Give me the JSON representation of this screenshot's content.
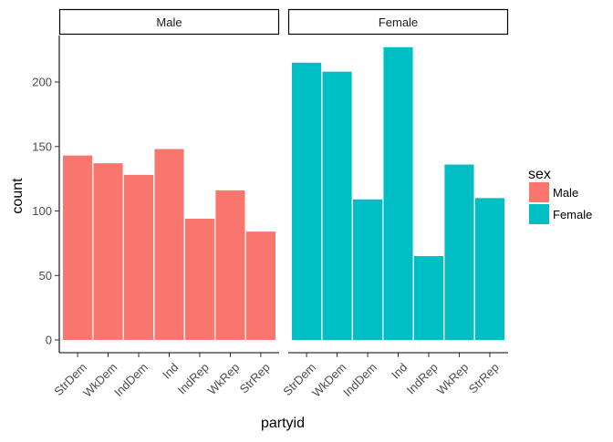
{
  "chart_data": {
    "type": "bar",
    "facet_variable": "sex",
    "xlabel": "partyid",
    "ylabel": "count",
    "categories": [
      "StrDem",
      "WkDem",
      "IndDem",
      "Ind",
      "IndRep",
      "WkRep",
      "StrRep"
    ],
    "ylim": [
      0,
      235
    ],
    "yticks": [
      0,
      50,
      100,
      150,
      200
    ],
    "grid": false,
    "legend": {
      "title": "sex",
      "placement": "right",
      "entries": [
        {
          "label": "Male",
          "color": "#f8766d"
        },
        {
          "label": "Female",
          "color": "#00bfc4"
        }
      ]
    },
    "panels": [
      {
        "strip": "Male",
        "color": "#f8766d",
        "values": [
          143,
          137,
          128,
          148,
          94,
          116,
          84
        ]
      },
      {
        "strip": "Female",
        "color": "#00bfc4",
        "values": [
          215,
          208,
          109,
          227,
          65,
          136,
          110
        ]
      }
    ]
  }
}
